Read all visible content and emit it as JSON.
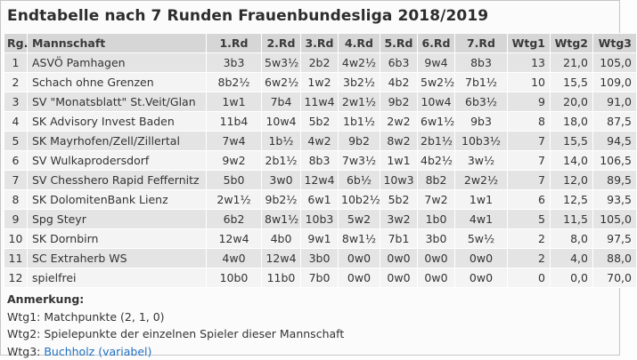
{
  "title": "Endtabelle nach 7 Runden  Frauenbundesliga 2018/2019",
  "columns": [
    "Rg.",
    "Mannschaft",
    "1.Rd",
    "2.Rd",
    "3.Rd",
    "4.Rd",
    "5.Rd",
    "6.Rd",
    "7.Rd",
    "Wtg1",
    "Wtg2",
    "Wtg3"
  ],
  "rows": [
    [
      "1",
      "ASVÖ Pamhagen",
      "3b3",
      "5w3½",
      "2b2",
      "4w2½",
      "6b3",
      "9w4",
      "8b3",
      "13",
      "21,0",
      "105,0"
    ],
    [
      "2",
      "Schach ohne Grenzen",
      "8b2½",
      "6w2½",
      "1w2",
      "3b2½",
      "4b2",
      "5w2½",
      "7b1½",
      "10",
      "15,5",
      "109,0"
    ],
    [
      "3",
      "SV \"Monatsblatt\" St.Veit/Glan",
      "1w1",
      "7b4",
      "11w4",
      "2w1½",
      "9b2",
      "10w4",
      "6b3½",
      "9",
      "20,0",
      "91,0"
    ],
    [
      "4",
      "SK Advisory Invest Baden",
      "11b4",
      "10w4",
      "5b2",
      "1b1½",
      "2w2",
      "6w1½",
      "9b3",
      "8",
      "18,0",
      "87,5"
    ],
    [
      "5",
      "SK Mayrhofen/Zell/Zillertal",
      "7w4",
      "1b½",
      "4w2",
      "9b2",
      "8w2",
      "2b1½",
      "10b3½",
      "7",
      "15,5",
      "94,5"
    ],
    [
      "6",
      "SV Wulkaprodersdorf",
      "9w2",
      "2b1½",
      "8b3",
      "7w3½",
      "1w1",
      "4b2½",
      "3w½",
      "7",
      "14,0",
      "106,5"
    ],
    [
      "7",
      "SV Chesshero Rapid Feffernitz",
      "5b0",
      "3w0",
      "12w4",
      "6b½",
      "10w3",
      "8b2",
      "2w2½",
      "7",
      "12,0",
      "89,5"
    ],
    [
      "8",
      "SK DolomitenBank Lienz",
      "2w1½",
      "9b2½",
      "6w1",
      "10b2½",
      "5b2",
      "7w2",
      "1w1",
      "6",
      "12,5",
      "93,5"
    ],
    [
      "9",
      "Spg Steyr",
      "6b2",
      "8w1½",
      "10b3",
      "5w2",
      "3w2",
      "1b0",
      "4w1",
      "5",
      "11,5",
      "105,0"
    ],
    [
      "10",
      "SK Dornbirn",
      "12w4",
      "4b0",
      "9w1",
      "8w1½",
      "7b1",
      "3b0",
      "5w½",
      "2",
      "8,0",
      "97,5"
    ],
    [
      "11",
      "SC Extraherb WS",
      "4w0",
      "12w4",
      "3b0",
      "0w0",
      "0w0",
      "0w0",
      "0w0",
      "2",
      "4,0",
      "88,0"
    ],
    [
      "12",
      "spielfrei",
      "10b0",
      "11b0",
      "7b0",
      "0w0",
      "0w0",
      "0w0",
      "0w0",
      "0",
      "0,0",
      "70,0"
    ]
  ],
  "notes": {
    "heading": "Anmerkung:",
    "wtg1": "Wtg1: Matchpunkte (2, 1, 0)",
    "wtg2": "Wtg2: Spielepunkte der einzelnen Spieler dieser Mannschaft",
    "wtg3_prefix": "Wtg3: ",
    "wtg3_link": "Buchholz (variabel)"
  }
}
